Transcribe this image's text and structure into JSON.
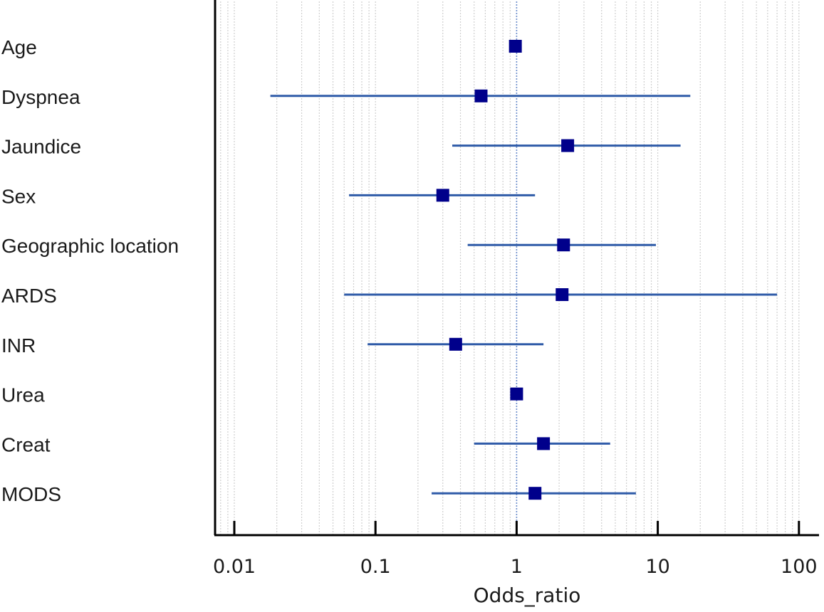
{
  "chart_data": {
    "type": "forest",
    "title": "",
    "xlabel": "Odds_ratio",
    "ylabel": "",
    "x_scale": "log",
    "xlim": [
      0.0075,
      160
    ],
    "x_ticks": [
      0.01,
      0.1,
      1,
      10,
      100
    ],
    "x_tick_labels": [
      "0.01",
      "0.1",
      "1",
      "10",
      "100"
    ],
    "reference_line": 1,
    "grid": "vertical minor log grid, dotted",
    "colors": {
      "marker": "#00008B",
      "ci_line": "#2F5BA8",
      "reference_line": "#6A8CCB",
      "grid": "#cfcfcf",
      "axis": "#000000"
    },
    "rows": [
      {
        "label": "Age",
        "or": 0.98,
        "lower": null,
        "upper": null
      },
      {
        "label": "Dyspnea",
        "or": 0.56,
        "lower": 0.018,
        "upper": 17
      },
      {
        "label": "Jaundice",
        "or": 2.3,
        "lower": 0.35,
        "upper": 14.5
      },
      {
        "label": "Sex",
        "or": 0.3,
        "lower": 0.065,
        "upper": 1.35
      },
      {
        "label": "Geographic location",
        "or": 2.15,
        "lower": 0.45,
        "upper": 9.7
      },
      {
        "label": "ARDS",
        "or": 2.1,
        "lower": 0.06,
        "upper": 70
      },
      {
        "label": "INR",
        "or": 0.37,
        "lower": 0.088,
        "upper": 1.55
      },
      {
        "label": "Urea",
        "or": 1.0,
        "lower": null,
        "upper": null
      },
      {
        "label": "Creat",
        "or": 1.55,
        "lower": 0.5,
        "upper": 4.6
      },
      {
        "label": "MODS",
        "or": 1.35,
        "lower": 0.25,
        "upper": 7
      }
    ]
  }
}
